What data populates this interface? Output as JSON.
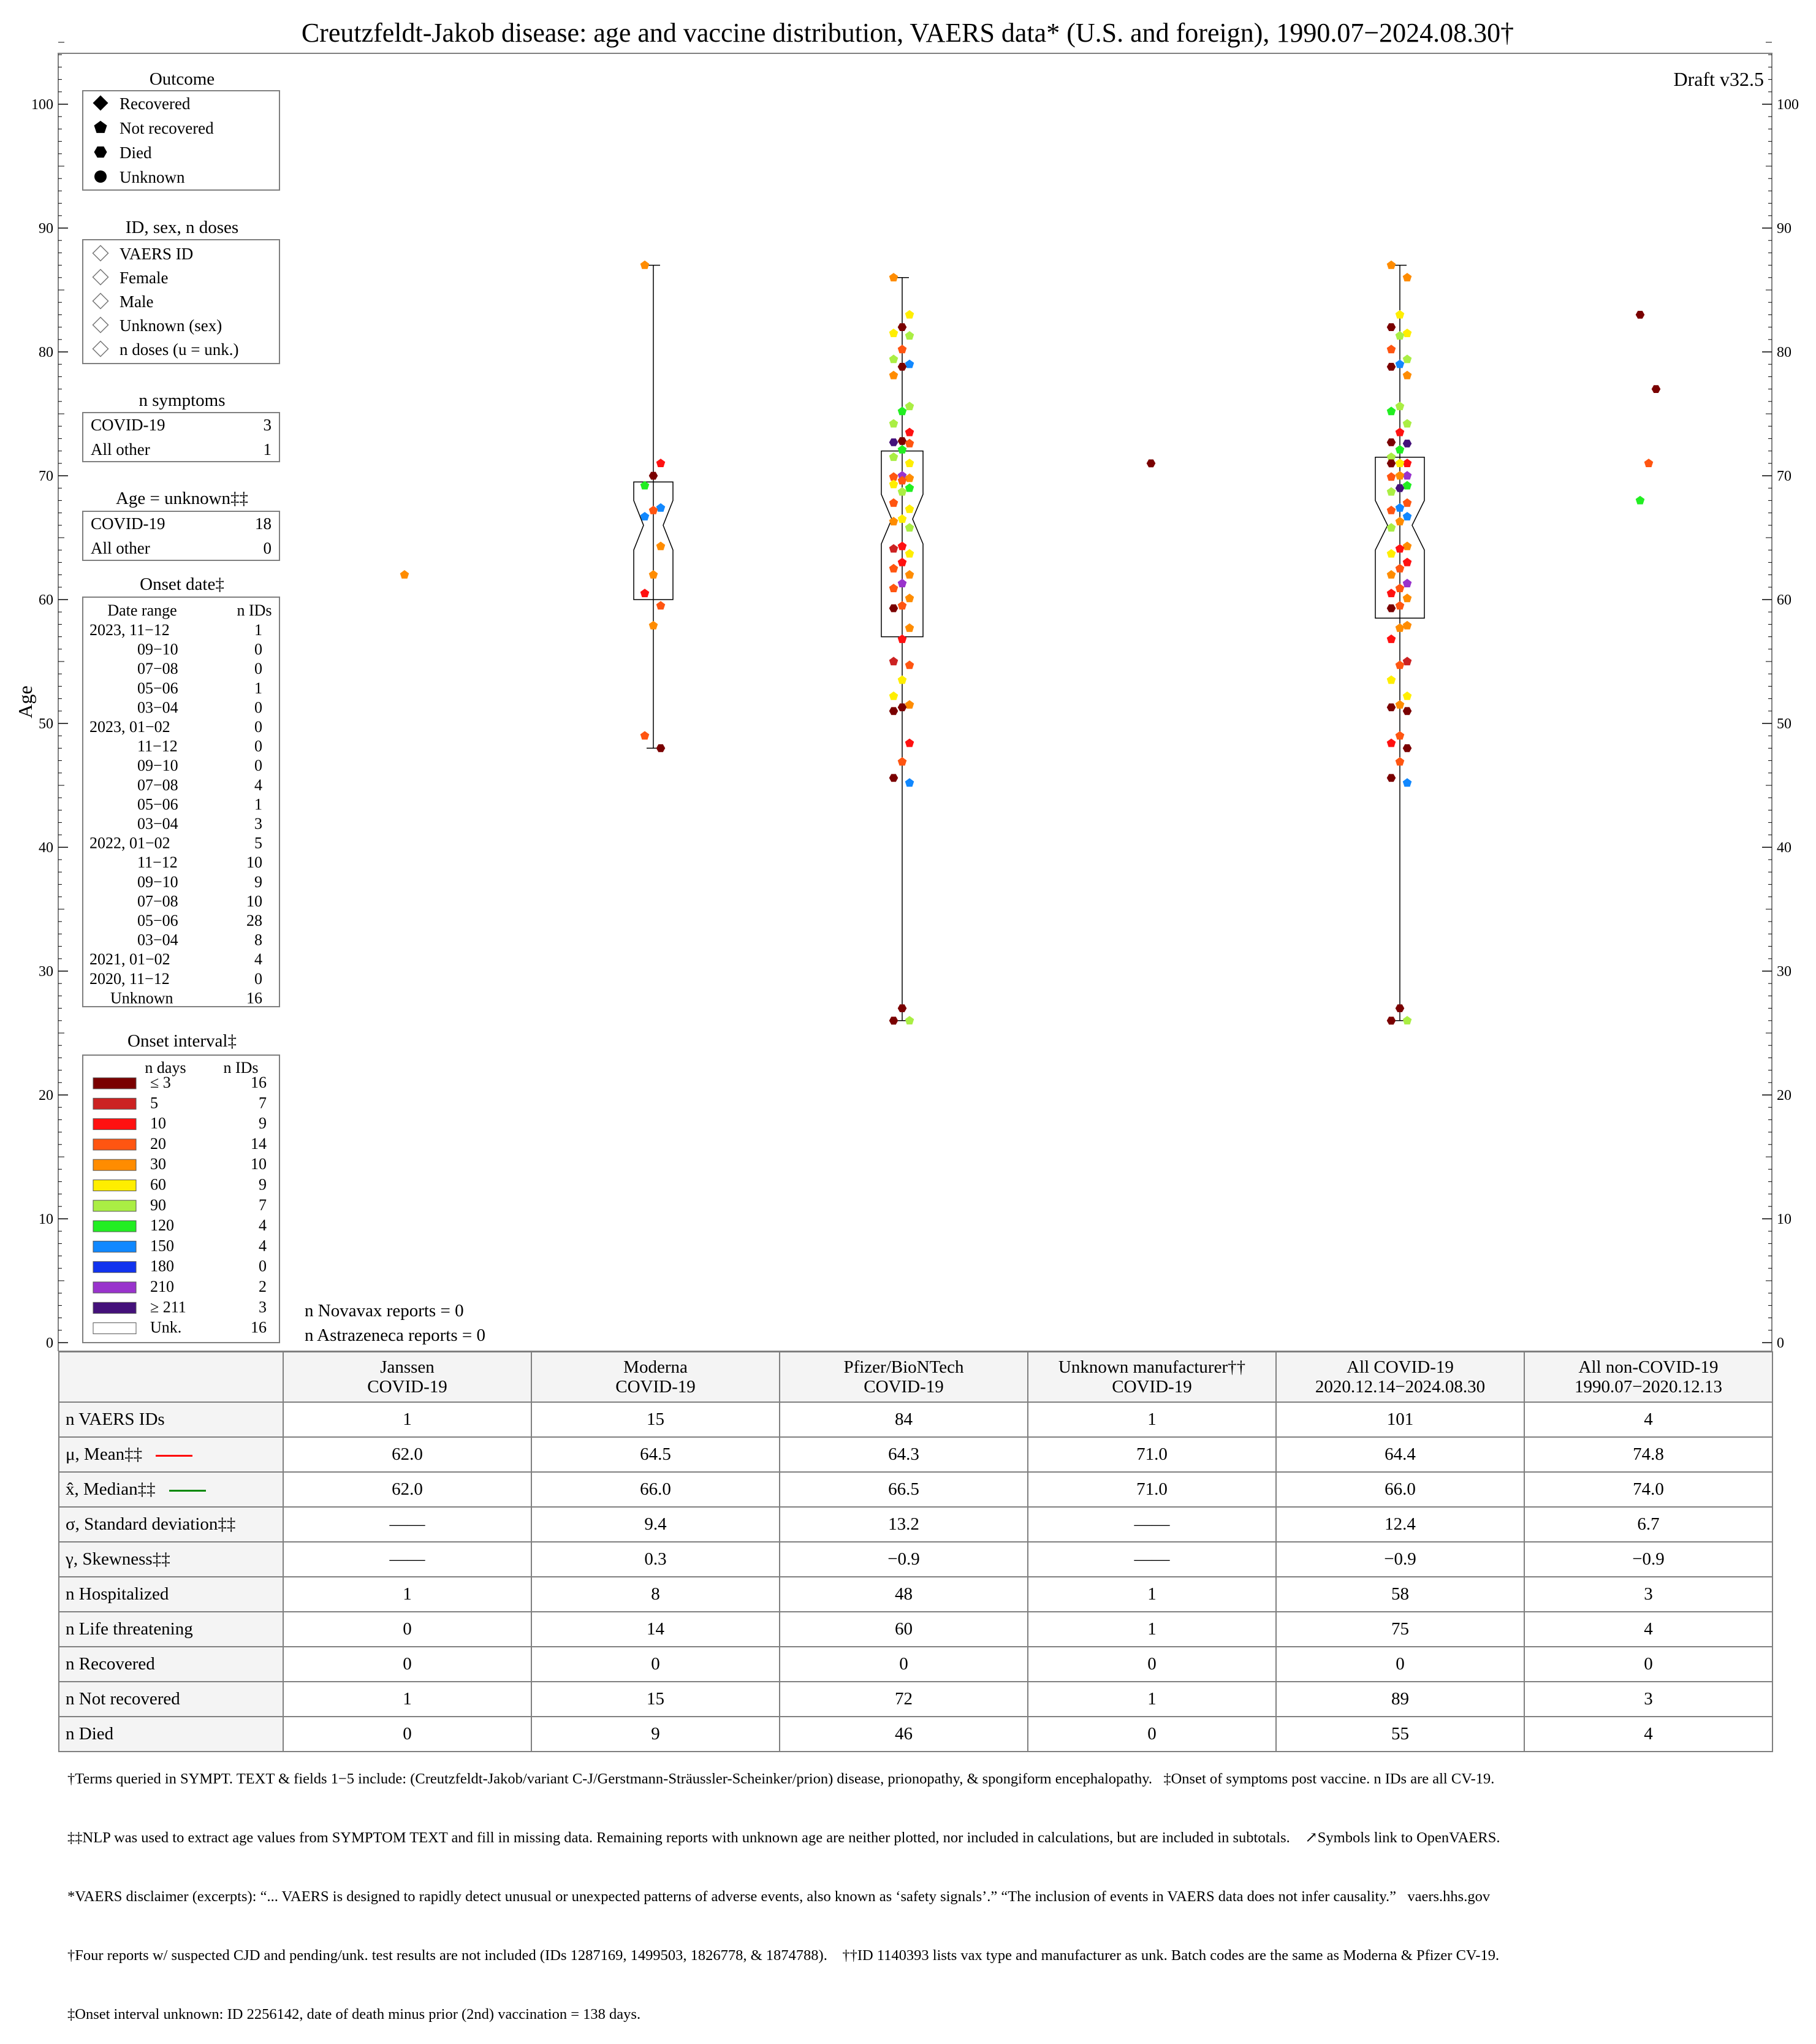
{
  "title": "Creutzfeldt-Jakob disease: age and vaccine distribution, VAERS data* (U.S. and foreign), 1990.07−2024.08.30†",
  "draft": "Draft v32.5",
  "legend": {
    "outcome": {
      "title": "Outcome",
      "items": [
        {
          "label": "Recovered",
          "icon": "diamond"
        },
        {
          "label": "Not recovered",
          "icon": "pentagon"
        },
        {
          "label": "Died",
          "icon": "hexagon"
        },
        {
          "label": "Unknown",
          "icon": "circle"
        }
      ]
    },
    "id_sex": {
      "title": "ID, sex, n doses",
      "items": [
        "VAERS ID",
        "Female",
        "Male",
        "Unknown (sex)",
        "n doses (u = unk.)"
      ]
    },
    "n_symptoms": {
      "title": "n symptoms",
      "rows": [
        [
          "COVID-19",
          "3"
        ],
        [
          "All other",
          "1"
        ]
      ]
    },
    "age_unknown": {
      "title": "Age = unknown‡‡",
      "rows": [
        [
          "COVID-19",
          "18"
        ],
        [
          "All other",
          "0"
        ]
      ]
    },
    "onset_date": {
      "title": "Onset date‡",
      "col_range": "Date range",
      "col_n": "n IDs",
      "rows": [
        [
          "2023, 11−12",
          "1"
        ],
        [
          "09−10",
          "0"
        ],
        [
          "07−08",
          "0"
        ],
        [
          "05−06",
          "1"
        ],
        [
          "03−04",
          "0"
        ],
        [
          "2023, 01−02",
          "0"
        ],
        [
          "11−12",
          "0"
        ],
        [
          "09−10",
          "0"
        ],
        [
          "07−08",
          "4"
        ],
        [
          "05−06",
          "1"
        ],
        [
          "03−04",
          "3"
        ],
        [
          "2022, 01−02",
          "5"
        ],
        [
          "11−12",
          "10"
        ],
        [
          "09−10",
          "9"
        ],
        [
          "07−08",
          "10"
        ],
        [
          "05−06",
          "28"
        ],
        [
          "03−04",
          "8"
        ],
        [
          "2021, 01−02",
          "4"
        ],
        [
          "2020, 11−12",
          "0"
        ],
        [
          "Unknown",
          "16"
        ]
      ]
    },
    "onset_interval": {
      "title": "Onset interval‡",
      "col_days": "n days",
      "col_n": "n IDs",
      "rows": [
        {
          "label": "≤ 3",
          "n": "16",
          "color": "#7a0000"
        },
        {
          "label": "5",
          "n": "7",
          "color": "#cc2222"
        },
        {
          "label": "10",
          "n": "9",
          "color": "#ff1111"
        },
        {
          "label": "20",
          "n": "14",
          "color": "#ff5511"
        },
        {
          "label": "30",
          "n": "10",
          "color": "#ff8c00"
        },
        {
          "label": "60",
          "n": "9",
          "color": "#ffee00"
        },
        {
          "label": "90",
          "n": "7",
          "color": "#aaee44"
        },
        {
          "label": "120",
          "n": "4",
          "color": "#22ee22"
        },
        {
          "label": "150",
          "n": "4",
          "color": "#1188ff"
        },
        {
          "label": "180",
          "n": "0",
          "color": "#1133ee"
        },
        {
          "label": "210",
          "n": "2",
          "color": "#9933cc"
        },
        {
          "label": "≥ 211",
          "n": "3",
          "color": "#44117a"
        },
        {
          "label": "Unk.",
          "n": "16",
          "color": "#ffffff"
        }
      ]
    }
  },
  "notes": [
    "n Novavax reports = 0",
    "n Astrazeneca reports = 0"
  ],
  "chart_data": {
    "type": "scatter",
    "title": "Creutzfeldt-Jakob disease: age and vaccine distribution, VAERS data* (U.S. and foreign), 1990.07−2024.08.30†",
    "ylabel": "Age",
    "ylim": [
      0,
      105
    ],
    "yticks": [
      0,
      10,
      20,
      30,
      40,
      50,
      60,
      70,
      80,
      90,
      100
    ],
    "categories": [
      "Janssen COVID-19",
      "Moderna COVID-19",
      "Pfizer/BioNTech COVID-19",
      "Unknown manufacturer COVID-19",
      "All COVID-19 2020.12.14−2024.08.30",
      "All non-COVID-19 1990.07−2020.12.13"
    ],
    "boxes": [
      {
        "group": 1,
        "min": 48,
        "q1": 60,
        "median": 66,
        "q3": 69.5,
        "max": 87
      },
      {
        "group": 2,
        "min": 26,
        "q1": 57,
        "median": 66.5,
        "q3": 72,
        "max": 86
      },
      {
        "group": 4,
        "min": 26,
        "q1": 58.5,
        "median": 66,
        "q3": 71.5,
        "max": 87
      }
    ],
    "series": [
      {
        "name": "Janssen COVID-19",
        "points": [
          [
            62,
            4
          ]
        ]
      },
      {
        "name": "Moderna COVID-19",
        "points": [
          [
            87,
            4
          ],
          [
            71,
            2
          ],
          [
            70,
            0
          ],
          [
            69.2,
            7
          ],
          [
            67.4,
            8
          ],
          [
            67.2,
            3
          ],
          [
            66.7,
            8
          ],
          [
            64.3,
            4
          ],
          [
            62,
            4
          ],
          [
            60.5,
            2
          ],
          [
            59.5,
            3
          ],
          [
            57.9,
            4
          ],
          [
            49,
            3
          ],
          [
            48,
            0
          ]
        ]
      },
      {
        "name": "Pfizer/BioNTech COVID-19",
        "points": [
          [
            86,
            4
          ],
          [
            83,
            5
          ],
          [
            82,
            0
          ],
          [
            81.5,
            5
          ],
          [
            81.3,
            6
          ],
          [
            80.2,
            3
          ],
          [
            79.4,
            6
          ],
          [
            79,
            8
          ],
          [
            78.8,
            0
          ],
          [
            78.1,
            4
          ],
          [
            75.6,
            6
          ],
          [
            75.2,
            7
          ],
          [
            74.2,
            6
          ],
          [
            73.5,
            2
          ],
          [
            72.8,
            0
          ],
          [
            72.7,
            11
          ],
          [
            72.6,
            3
          ],
          [
            72.1,
            7
          ],
          [
            71.5,
            6
          ],
          [
            71,
            5
          ],
          [
            70,
            10
          ],
          [
            69.9,
            3
          ],
          [
            69.8,
            4
          ],
          [
            69.6,
            3
          ],
          [
            69.3,
            5
          ],
          [
            69,
            7
          ],
          [
            68.7,
            6
          ],
          [
            67.8,
            3
          ],
          [
            67.3,
            5
          ],
          [
            66.5,
            5
          ],
          [
            66.3,
            4
          ],
          [
            65.8,
            6
          ],
          [
            64.3,
            2
          ],
          [
            64.1,
            1
          ],
          [
            63.7,
            5
          ],
          [
            63,
            2
          ],
          [
            62.5,
            3
          ],
          [
            62,
            4
          ],
          [
            61.3,
            10
          ],
          [
            60.9,
            3
          ],
          [
            60.1,
            4
          ],
          [
            59.5,
            3
          ],
          [
            59.3,
            0
          ],
          [
            57.7,
            4
          ],
          [
            56.8,
            2
          ],
          [
            55,
            1
          ],
          [
            54.7,
            3
          ],
          [
            53.5,
            5
          ],
          [
            52.2,
            5
          ],
          [
            51.5,
            4
          ],
          [
            51.3,
            0
          ],
          [
            51,
            0
          ],
          [
            48.4,
            2
          ],
          [
            46.9,
            3
          ],
          [
            45.6,
            0
          ],
          [
            45.2,
            8
          ],
          [
            27,
            0
          ],
          [
            26,
            0
          ],
          [
            26,
            6
          ]
        ]
      },
      {
        "name": "Unknown manufacturer COVID-19",
        "points": [
          [
            71,
            0
          ]
        ]
      },
      {
        "name": "All COVID-19",
        "points": [
          [
            87,
            4
          ],
          [
            86,
            4
          ],
          [
            83,
            5
          ],
          [
            82,
            0
          ],
          [
            81.5,
            5
          ],
          [
            81.3,
            6
          ],
          [
            80.2,
            3
          ],
          [
            79.4,
            6
          ],
          [
            79,
            8
          ],
          [
            78.8,
            0
          ],
          [
            78.1,
            4
          ],
          [
            75.6,
            6
          ],
          [
            75.2,
            7
          ],
          [
            74.2,
            6
          ],
          [
            73.5,
            2
          ],
          [
            72.7,
            0
          ],
          [
            72.6,
            11
          ],
          [
            72.1,
            7
          ],
          [
            71.5,
            6
          ],
          [
            71,
            2
          ],
          [
            71,
            5
          ],
          [
            71,
            0
          ],
          [
            70,
            10
          ],
          [
            70,
            4
          ],
          [
            69.9,
            3
          ],
          [
            69.2,
            7
          ],
          [
            69,
            11
          ],
          [
            68.7,
            6
          ],
          [
            67.8,
            3
          ],
          [
            67.4,
            8
          ],
          [
            67.2,
            3
          ],
          [
            66.7,
            8
          ],
          [
            66.3,
            4
          ],
          [
            65.8,
            6
          ],
          [
            64.3,
            4
          ],
          [
            64.1,
            2
          ],
          [
            63.7,
            5
          ],
          [
            63,
            2
          ],
          [
            62.5,
            3
          ],
          [
            62,
            4
          ],
          [
            61.3,
            10
          ],
          [
            60.9,
            3
          ],
          [
            60.5,
            2
          ],
          [
            60.1,
            4
          ],
          [
            59.5,
            3
          ],
          [
            59.3,
            0
          ],
          [
            57.9,
            4
          ],
          [
            57.7,
            4
          ],
          [
            56.8,
            2
          ],
          [
            55,
            1
          ],
          [
            54.7,
            3
          ],
          [
            53.5,
            5
          ],
          [
            52.2,
            5
          ],
          [
            51.5,
            4
          ],
          [
            51.3,
            0
          ],
          [
            51,
            0
          ],
          [
            49,
            3
          ],
          [
            48.4,
            2
          ],
          [
            48,
            0
          ],
          [
            46.9,
            3
          ],
          [
            45.6,
            0
          ],
          [
            45.2,
            8
          ],
          [
            27,
            0
          ],
          [
            26,
            0
          ],
          [
            26,
            6
          ]
        ]
      },
      {
        "name": "All non-COVID-19",
        "points": [
          [
            83,
            0
          ],
          [
            77,
            0
          ],
          [
            71,
            3
          ],
          [
            68,
            7
          ]
        ]
      }
    ]
  },
  "table": {
    "headers": [
      "",
      "Janssen\nCOVID-19",
      "Moderna\nCOVID-19",
      "Pfizer/BioNTech\nCOVID-19",
      "Unknown manufacturer††\nCOVID-19",
      "All COVID-19\n2020.12.14−2024.08.30",
      "All non-COVID-19\n1990.07−2020.12.13"
    ],
    "rows": [
      {
        "label": "n VAERS IDs",
        "values": [
          "1",
          "15",
          "84",
          "1",
          "101",
          "4"
        ]
      },
      {
        "label": "μ, Mean‡‡",
        "values": [
          "62.0",
          "64.5",
          "64.3",
          "71.0",
          "64.4",
          "74.8"
        ]
      },
      {
        "label": "x̂, Median‡‡",
        "values": [
          "62.0",
          "66.0",
          "66.5",
          "71.0",
          "66.0",
          "74.0"
        ]
      },
      {
        "label": "σ, Standard deviation‡‡",
        "values": [
          "——",
          "9.4",
          "13.2",
          "——",
          "12.4",
          "6.7"
        ]
      },
      {
        "label": "γ, Skewness‡‡",
        "values": [
          "——",
          "0.3",
          "−0.9",
          "——",
          "−0.9",
          "−0.9"
        ]
      },
      {
        "label": "n Hospitalized",
        "values": [
          "1",
          "8",
          "48",
          "1",
          "58",
          "3"
        ]
      },
      {
        "label": "n Life threatening",
        "values": [
          "0",
          "14",
          "60",
          "1",
          "75",
          "4"
        ]
      },
      {
        "label": "n Recovered",
        "values": [
          "0",
          "0",
          "0",
          "0",
          "0",
          "0"
        ]
      },
      {
        "label": "n Not recovered",
        "values": [
          "1",
          "15",
          "72",
          "1",
          "89",
          "3"
        ]
      },
      {
        "label": "n Died",
        "values": [
          "0",
          "9",
          "46",
          "0",
          "55",
          "4"
        ]
      }
    ],
    "mean_color": "#ff0000",
    "median_color": "#008800"
  },
  "footnotes": [
    "†Terms queried in SYMPT. TEXT & fields 1−5 include: (Creutzfeldt-Jakob/variant C-J/Gerstmann-Sträussler-Scheinker/prion) disease, prionopathy, & spongiform encephalopathy.   ‡Onset of symptoms post vaccine. n IDs are all CV-19.",
    "‡‡NLP was used to extract age values from SYMPTOM TEXT and fill in missing data. Remaining reports with unknown age are neither plotted, nor included in calculations, but are included in subtotals.    ↗Symbols link to OpenVAERS.",
    "*VAERS disclaimer (excerpts): “... VAERS is designed to rapidly detect unusual or unexpected patterns of adverse events, also known as ‘safety signals’.” “The inclusion of events in VAERS data does not infer causality.”   vaers.hhs.gov",
    "†Four reports w/ suspected CJD and pending/unk. test results are not included (IDs 1287169, 1499503, 1826778, & 1874788).    ††ID 1140393 lists vax type and manufacturer as unk. Batch codes are the same as Moderna & Pfizer CV-19.",
    "‡Onset interval unknown: ID 2256142, date of death minus prior (2nd) vaccination = 138 days."
  ]
}
